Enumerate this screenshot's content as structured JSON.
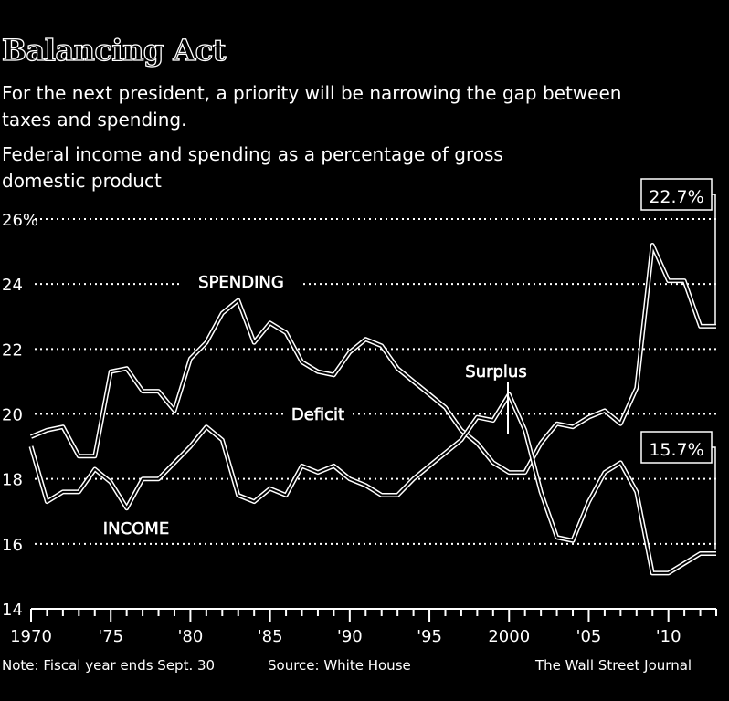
{
  "chart_data": {
    "type": "line",
    "title": "Balancing Act",
    "subtitle": "For the next president, a priority will be narrowing the gap between taxes and spending.",
    "description": "Federal income and spending as a percentage of gross domestic product",
    "ylim": [
      14,
      26
    ],
    "y_ticks": [
      {
        "value": 26,
        "label": "26%"
      },
      {
        "value": 24,
        "label": "24"
      },
      {
        "value": 22,
        "label": "22"
      },
      {
        "value": 20,
        "label": "20"
      },
      {
        "value": 18,
        "label": "18"
      },
      {
        "value": 16,
        "label": "16"
      },
      {
        "value": 14,
        "label": "14"
      }
    ],
    "xlim": [
      1970,
      2013
    ],
    "x_ticks": [
      {
        "value": 1970,
        "label": "1970"
      },
      {
        "value": 1975,
        "label": "'75"
      },
      {
        "value": 1980,
        "label": "'80"
      },
      {
        "value": 1985,
        "label": "'85"
      },
      {
        "value": 1990,
        "label": "'90"
      },
      {
        "value": 1995,
        "label": "'95"
      },
      {
        "value": 2000,
        "label": "2000"
      },
      {
        "value": 2005,
        "label": "'05"
      },
      {
        "value": 2010,
        "label": "'10"
      }
    ],
    "grid": true,
    "series": [
      {
        "name": "SPENDING",
        "x": [
          1970,
          1971,
          1972,
          1973,
          1974,
          1975,
          1976,
          1977,
          1978,
          1979,
          1980,
          1981,
          1982,
          1983,
          1984,
          1985,
          1986,
          1987,
          1988,
          1989,
          1990,
          1991,
          1992,
          1993,
          1994,
          1995,
          1996,
          1997,
          1998,
          1999,
          2000,
          2001,
          2002,
          2003,
          2004,
          2005,
          2006,
          2007,
          2008,
          2009,
          2010,
          2011,
          2012,
          2013
        ],
        "values": [
          19.3,
          19.5,
          19.6,
          18.7,
          18.7,
          21.3,
          21.4,
          20.7,
          20.7,
          20.1,
          21.7,
          22.2,
          23.1,
          23.5,
          22.2,
          22.8,
          22.5,
          21.6,
          21.3,
          21.2,
          21.9,
          22.3,
          22.1,
          21.4,
          21.0,
          20.6,
          20.2,
          19.5,
          19.1,
          18.5,
          18.2,
          18.2,
          19.1,
          19.7,
          19.6,
          19.9,
          20.1,
          19.7,
          20.8,
          25.2,
          24.1,
          24.1,
          22.7,
          22.7
        ]
      },
      {
        "name": "INCOME",
        "x": [
          1970,
          1971,
          1972,
          1973,
          1974,
          1975,
          1976,
          1977,
          1978,
          1979,
          1980,
          1981,
          1982,
          1983,
          1984,
          1985,
          1986,
          1987,
          1988,
          1989,
          1990,
          1991,
          1992,
          1993,
          1994,
          1995,
          1996,
          1997,
          1998,
          1999,
          2000,
          2001,
          2002,
          2003,
          2004,
          2005,
          2006,
          2007,
          2008,
          2009,
          2010,
          2011,
          2012,
          2013
        ],
        "values": [
          19.0,
          17.3,
          17.6,
          17.6,
          18.3,
          17.9,
          17.1,
          18.0,
          18.0,
          18.5,
          19.0,
          19.6,
          19.2,
          17.5,
          17.3,
          17.7,
          17.5,
          18.4,
          18.2,
          18.4,
          18.0,
          17.8,
          17.5,
          17.5,
          18.0,
          18.4,
          18.8,
          19.2,
          19.9,
          19.8,
          20.6,
          19.5,
          17.6,
          16.2,
          16.1,
          17.3,
          18.2,
          18.5,
          17.6,
          15.1,
          15.1,
          15.4,
          15.7,
          15.7
        ]
      }
    ],
    "annotations": {
      "spending_label": "SPENDING",
      "income_label": "INCOME",
      "deficit_label": "Deficit",
      "surplus_label": "Surplus",
      "spending_end": "22.7%",
      "income_end": "15.7%"
    }
  },
  "footer": {
    "note": "Note: Fiscal year ends Sept. 30",
    "source": "Source: White House",
    "publisher": "The Wall Street Journal"
  }
}
